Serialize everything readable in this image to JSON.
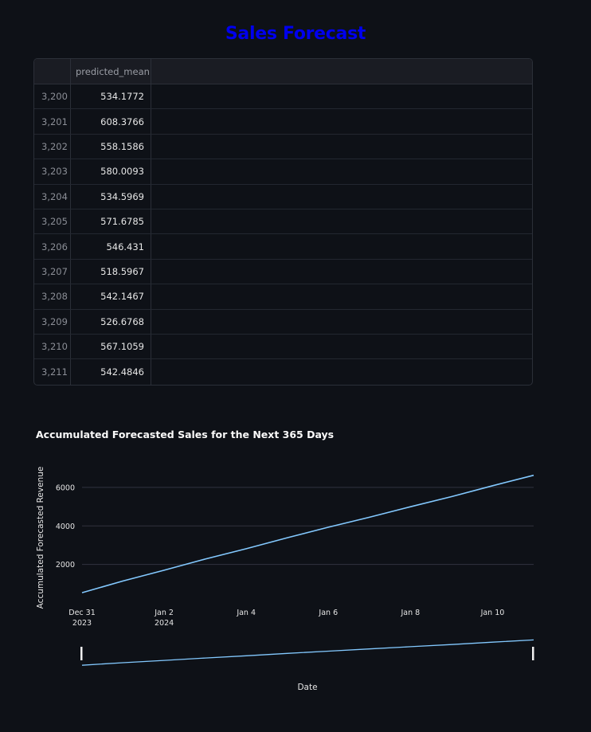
{
  "page": {
    "title": "Sales Forecast"
  },
  "table": {
    "columns": [
      "",
      "predicted_mean"
    ],
    "rows": [
      {
        "index": "3,200",
        "value": "534.1772"
      },
      {
        "index": "3,201",
        "value": "608.3766"
      },
      {
        "index": "3,202",
        "value": "558.1586"
      },
      {
        "index": "3,203",
        "value": "580.0093"
      },
      {
        "index": "3,204",
        "value": "534.5969"
      },
      {
        "index": "3,205",
        "value": "571.6785"
      },
      {
        "index": "3,206",
        "value": "546.431"
      },
      {
        "index": "3,207",
        "value": "518.5967"
      },
      {
        "index": "3,208",
        "value": "542.1467"
      },
      {
        "index": "3,209",
        "value": "526.6768"
      },
      {
        "index": "3,210",
        "value": "567.1059"
      },
      {
        "index": "3,211",
        "value": "542.4846"
      }
    ]
  },
  "chart_data": {
    "type": "line",
    "title": "Accumulated Forecasted Sales for the Next 365 Days",
    "xlabel": "Date",
    "ylabel": "Accumulated Forecasted Revenue",
    "x": [
      "2023-12-31",
      "2024-01-01",
      "2024-01-02",
      "2024-01-03",
      "2024-01-04",
      "2024-01-05",
      "2024-01-06",
      "2024-01-07",
      "2024-01-08",
      "2024-01-09",
      "2024-01-10",
      "2024-01-11"
    ],
    "series": [
      {
        "values": [
          534.1772,
          1142.5538,
          1700.7124,
          2280.7217,
          2815.3186,
          3386.9971,
          3933.4281,
          4452.0248,
          4994.1715,
          5520.8483,
          6087.9542,
          6630.4388
        ]
      }
    ],
    "xlim": [
      "2023-12-31",
      "2024-01-11"
    ],
    "ylim": [
      0,
      6700
    ],
    "x_tick_labels": [
      {
        "date": "2023-12-31",
        "line1": "Dec 31",
        "line2": "2023"
      },
      {
        "date": "2024-01-02",
        "line1": "Jan 2",
        "line2": "2024"
      },
      {
        "date": "2024-01-04",
        "line1": "Jan 4",
        "line2": ""
      },
      {
        "date": "2024-01-06",
        "line1": "Jan 6",
        "line2": ""
      },
      {
        "date": "2024-01-08",
        "line1": "Jan 8",
        "line2": ""
      },
      {
        "date": "2024-01-10",
        "line1": "Jan 10",
        "line2": ""
      }
    ],
    "y_ticks": [
      2000,
      4000,
      6000
    ],
    "grid": true,
    "line_color": "#83c9ff",
    "grid_color": "#31333f",
    "range_slider": true
  }
}
